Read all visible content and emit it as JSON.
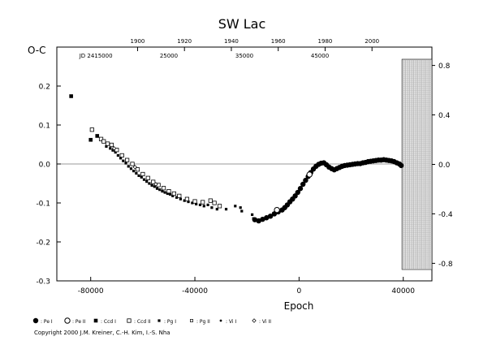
{
  "copyright": "Copyright 2000 J.M. Kreiner, C.-H. Kim, I.-S. Nha",
  "chart_data": {
    "type": "scatter",
    "title": "SW Lac",
    "xlabel": "Epoch",
    "ylabel": "O-C",
    "xlim": [
      -93000,
      51000
    ],
    "ylim": [
      -0.3,
      0.3
    ],
    "grid": false,
    "zero_line": true,
    "left_y_ticks": [
      -0.3,
      -0.2,
      -0.1,
      0.0,
      0.1,
      0.2
    ],
    "left_y_tick_labels": [
      "-0.3",
      "-0.2",
      "-0.1",
      "0.0",
      "0.1",
      "0.2"
    ],
    "x_ticks": [
      -80000,
      -40000,
      0,
      40000
    ],
    "x_tick_labels": [
      "-80000",
      "-40000",
      "0",
      "40000"
    ],
    "top_year_ticks": [
      {
        "epoch": -62000,
        "label": "1900"
      },
      {
        "epoch": -44000,
        "label": "1920"
      },
      {
        "epoch": -26000,
        "label": "1940"
      },
      {
        "epoch": -8000,
        "label": "1960"
      },
      {
        "epoch": 10000,
        "label": "1980"
      },
      {
        "epoch": 28000,
        "label": "2000"
      }
    ],
    "jd_labels": [
      {
        "epoch": -78000,
        "label": "JD  2415000"
      },
      {
        "epoch": -50000,
        "label": "25000"
      },
      {
        "epoch": -21000,
        "label": "35000"
      },
      {
        "epoch": 8000,
        "label": "45000"
      }
    ],
    "right_panel": {
      "x_range": [
        39500,
        51000
      ],
      "ylim": [
        -0.85,
        0.85
      ],
      "ticks": [
        -0.8,
        -0.4,
        0.0,
        0.4,
        0.8
      ],
      "tick_labels": [
        "-0.8",
        "-0.4",
        "0.0",
        "0.4",
        "0.8"
      ]
    },
    "legend": [
      {
        "symbol": "filled-circle",
        "label": ": Pe I"
      },
      {
        "symbol": "open-circle",
        "label": ": Pe II"
      },
      {
        "symbol": "filled-square",
        "label": ": Ccd I"
      },
      {
        "symbol": "open-square",
        "label": ": Ccd II"
      },
      {
        "symbol": "small-filled-square",
        "label": ": Pg I"
      },
      {
        "symbol": "small-open-square",
        "label": ": Pg II"
      },
      {
        "symbol": "small-dot",
        "label": ": Vi I"
      },
      {
        "symbol": "small-open-diamond",
        "label": ": Vi II"
      }
    ],
    "series": [
      {
        "symbol": "filled-square",
        "points": [
          [
            -87500,
            0.174
          ],
          [
            -80000,
            0.062
          ],
          [
            -77500,
            0.072
          ]
        ]
      },
      {
        "symbol": "small-filled-square",
        "points": [
          [
            -74000,
            0.045
          ],
          [
            -72500,
            0.04
          ],
          [
            -71500,
            0.035
          ],
          [
            -70500,
            0.03
          ],
          [
            -69500,
            0.022
          ],
          [
            -68500,
            0.015
          ],
          [
            -67500,
            0.008
          ],
          [
            -66500,
            0.002
          ],
          [
            -65500,
            -0.006
          ],
          [
            -64500,
            -0.012
          ],
          [
            -63500,
            -0.018
          ],
          [
            -62500,
            -0.024
          ],
          [
            -61500,
            -0.03
          ],
          [
            -60500,
            -0.034
          ],
          [
            -59500,
            -0.04
          ],
          [
            -58500,
            -0.045
          ],
          [
            -57500,
            -0.05
          ],
          [
            -56500,
            -0.055
          ],
          [
            -55500,
            -0.058
          ],
          [
            -54500,
            -0.063
          ],
          [
            -53500,
            -0.066
          ],
          [
            -52500,
            -0.07
          ],
          [
            -51500,
            -0.073
          ],
          [
            -50500,
            -0.076
          ],
          [
            -49500,
            -0.078
          ],
          [
            -48500,
            -0.082
          ],
          [
            -47000,
            -0.086
          ],
          [
            -45500,
            -0.09
          ],
          [
            -44000,
            -0.094
          ],
          [
            -42500,
            -0.097
          ],
          [
            -41000,
            -0.1
          ],
          [
            -39500,
            -0.103
          ],
          [
            -38000,
            -0.105
          ],
          [
            -36500,
            -0.108
          ],
          [
            -35000,
            -0.105
          ],
          [
            -33500,
            -0.112
          ],
          [
            -31500,
            -0.116
          ],
          [
            -28000,
            -0.116
          ],
          [
            -24500,
            -0.108
          ],
          [
            -22500,
            -0.112
          ],
          [
            -22000,
            -0.121
          ],
          [
            -18000,
            -0.13
          ],
          [
            -17500,
            -0.14
          ]
        ]
      },
      {
        "symbol": "open-square",
        "points": [
          [
            -79500,
            0.088
          ],
          [
            -76000,
            0.064
          ],
          [
            -75000,
            0.058
          ],
          [
            -73500,
            0.052
          ],
          [
            -72000,
            0.049
          ],
          [
            -70000,
            0.036
          ],
          [
            -68000,
            0.022
          ],
          [
            -66000,
            0.01
          ],
          [
            -64000,
            0.0
          ],
          [
            -62000,
            -0.014
          ],
          [
            -60000,
            -0.026
          ],
          [
            -58000,
            -0.036
          ],
          [
            -56000,
            -0.046
          ],
          [
            -54000,
            -0.054
          ],
          [
            -52000,
            -0.062
          ],
          [
            -50000,
            -0.07
          ],
          [
            -48000,
            -0.076
          ],
          [
            -46000,
            -0.082
          ],
          [
            -43000,
            -0.09
          ],
          [
            -40000,
            -0.096
          ],
          [
            -37000,
            -0.098
          ],
          [
            -34000,
            -0.094
          ],
          [
            -32500,
            -0.1
          ],
          [
            -30500,
            -0.108
          ]
        ]
      },
      {
        "symbol": "filled-circle",
        "points": [
          [
            -17000,
            -0.143
          ],
          [
            -15500,
            -0.146
          ],
          [
            -14000,
            -0.142
          ],
          [
            -12500,
            -0.138
          ],
          [
            -11000,
            -0.134
          ],
          [
            -9500,
            -0.128
          ],
          [
            -8000,
            -0.123
          ],
          [
            -6500,
            -0.118
          ],
          [
            -5500,
            -0.112
          ],
          [
            -4500,
            -0.105
          ],
          [
            -3500,
            -0.097
          ],
          [
            -2500,
            -0.09
          ],
          [
            -1500,
            -0.082
          ],
          [
            -500,
            -0.073
          ],
          [
            500,
            -0.063
          ],
          [
            1500,
            -0.052
          ],
          [
            2500,
            -0.042
          ],
          [
            3500,
            -0.032
          ],
          [
            4500,
            -0.022
          ],
          [
            5500,
            -0.013
          ],
          [
            6500,
            -0.006
          ],
          [
            7500,
            -0.001
          ],
          [
            8500,
            0.002
          ],
          [
            9500,
            0.003
          ],
          [
            10500,
            -0.002
          ],
          [
            11500,
            -0.008
          ],
          [
            12500,
            -0.012
          ],
          [
            13500,
            -0.015
          ],
          [
            14500,
            -0.012
          ],
          [
            15500,
            -0.009
          ],
          [
            16500,
            -0.006
          ],
          [
            17500,
            -0.004
          ],
          [
            18500,
            -0.003
          ],
          [
            19500,
            -0.002
          ],
          [
            20500,
            -0.001
          ],
          [
            21500,
            0.0
          ],
          [
            22500,
            0.001
          ],
          [
            23500,
            0.001
          ],
          [
            24500,
            0.003
          ],
          [
            25500,
            0.004
          ],
          [
            26500,
            0.006
          ],
          [
            27500,
            0.007
          ],
          [
            28500,
            0.008
          ],
          [
            29500,
            0.009
          ],
          [
            30500,
            0.01
          ],
          [
            31500,
            0.01
          ],
          [
            32500,
            0.011
          ],
          [
            33500,
            0.01
          ],
          [
            34500,
            0.009
          ],
          [
            35500,
            0.008
          ],
          [
            36500,
            0.006
          ],
          [
            37500,
            0.003
          ],
          [
            38500,
            0.0
          ],
          [
            39200,
            -0.004
          ]
        ]
      },
      {
        "symbol": "open-circle",
        "points": [
          [
            -8500,
            -0.118
          ],
          [
            4000,
            -0.027
          ]
        ]
      },
      {
        "symbol": "small-dot",
        "points": [
          [
            -16000,
            -0.145
          ],
          [
            -13000,
            -0.14
          ],
          [
            -10000,
            -0.13
          ],
          [
            -7000,
            -0.12
          ],
          [
            -1000,
            -0.078
          ],
          [
            6000,
            -0.01
          ],
          [
            12000,
            -0.01
          ],
          [
            18000,
            -0.004
          ],
          [
            24000,
            0.002
          ],
          [
            30000,
            0.008
          ]
        ]
      },
      {
        "symbol": "small-open-diamond",
        "points": [
          [
            -71000,
            0.04
          ],
          [
            -63000,
            -0.008
          ],
          [
            -55000,
            -0.052
          ]
        ]
      }
    ]
  }
}
